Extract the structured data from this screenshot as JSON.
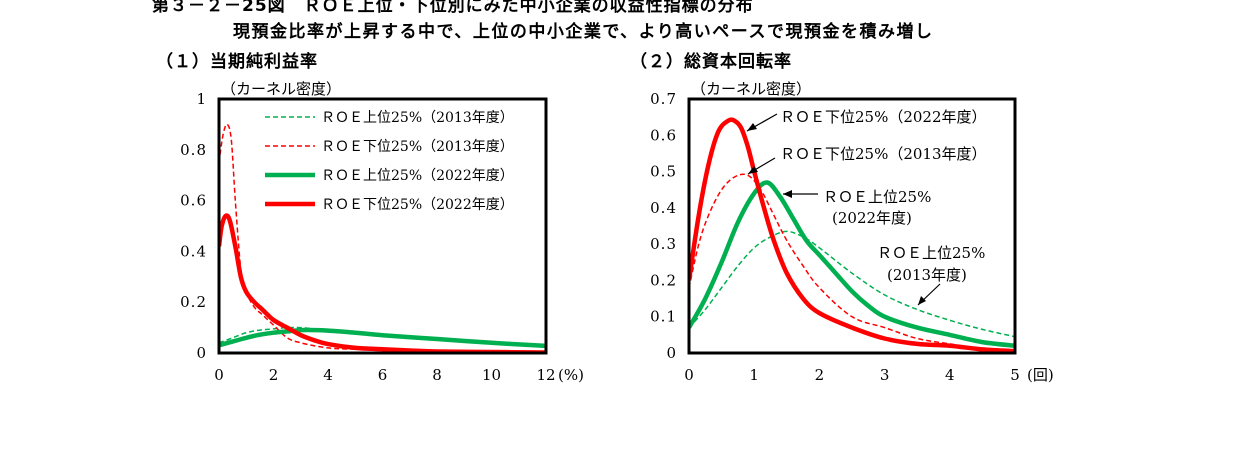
{
  "figure": {
    "title": "第３－２－25図　ＲＯＥ上位・下位別にみた中小企業の収益性指標の分布",
    "subtitle": "現預金比率が上昇する中で、上位の中小企業で、より高いペースで現預金を積み増し"
  },
  "colors": {
    "green": "#00b050",
    "red": "#ff0000",
    "axis": "#000000"
  },
  "chart_data": [
    {
      "type": "line",
      "title": "（１）当期純利益率",
      "ylabel": "（カーネル密度）",
      "x_unit": "(%)",
      "xlim": [
        0,
        12
      ],
      "ylim": [
        0,
        1
      ],
      "xticks": [
        "0",
        "2",
        "4",
        "6",
        "8",
        "10",
        "12"
      ],
      "yticks": [
        "0",
        "0.2",
        "0.4",
        "0.6",
        "0.8",
        "1"
      ],
      "legend_position": "top-right",
      "series": [
        {
          "name": "ＲＯＥ上位25%（2013年度）",
          "color": "green",
          "style": "dashed",
          "x": [
            0,
            0.5,
            1,
            1.5,
            2,
            2.5,
            3,
            3.5,
            4,
            5,
            6,
            8,
            10,
            12
          ],
          "y": [
            0.04,
            0.06,
            0.08,
            0.09,
            0.095,
            0.1,
            0.1,
            0.095,
            0.09,
            0.08,
            0.07,
            0.05,
            0.04,
            0.03
          ]
        },
        {
          "name": "ＲＯＥ下位25%（2013年度）",
          "color": "red",
          "style": "dashed",
          "x": [
            0,
            0.15,
            0.3,
            0.45,
            0.6,
            0.8,
            1,
            1.3,
            1.6,
            2,
            2.5,
            3,
            4,
            5,
            6,
            8,
            10,
            12
          ],
          "y": [
            0.75,
            0.86,
            0.9,
            0.84,
            0.6,
            0.33,
            0.24,
            0.18,
            0.15,
            0.11,
            0.06,
            0.04,
            0.02,
            0.015,
            0.01,
            0.005,
            0.003,
            0.002
          ]
        },
        {
          "name": "ＲＯＥ上位25%（2022年度）",
          "color": "green",
          "style": "solid",
          "x": [
            0,
            0.5,
            1,
            1.5,
            2,
            2.5,
            3,
            3.5,
            4,
            5,
            6,
            8,
            10,
            12
          ],
          "y": [
            0.03,
            0.045,
            0.06,
            0.072,
            0.08,
            0.085,
            0.09,
            0.09,
            0.088,
            0.08,
            0.07,
            0.055,
            0.04,
            0.028
          ]
        },
        {
          "name": "ＲＯＥ下位25%（2022年度）",
          "color": "red",
          "style": "solid",
          "x": [
            0,
            0.1,
            0.25,
            0.4,
            0.6,
            0.8,
            1,
            1.3,
            1.6,
            2,
            2.5,
            3,
            3.5,
            4,
            5,
            6,
            7,
            8,
            10,
            12
          ],
          "y": [
            0.42,
            0.5,
            0.54,
            0.52,
            0.42,
            0.3,
            0.24,
            0.2,
            0.17,
            0.13,
            0.1,
            0.07,
            0.05,
            0.035,
            0.02,
            0.015,
            0.01,
            0.006,
            0.004,
            0.002
          ]
        }
      ]
    },
    {
      "type": "line",
      "title": "（２）総資本回転率",
      "ylabel": "（カーネル密度）",
      "x_unit": "(回)",
      "xlim": [
        0,
        5
      ],
      "ylim": [
        0,
        0.7
      ],
      "xticks": [
        "0",
        "1",
        "2",
        "3",
        "4",
        "5"
      ],
      "yticks": [
        "0",
        "0.1",
        "0.2",
        "0.3",
        "0.4",
        "0.5",
        "0.6",
        "0.7"
      ],
      "annotations": [
        {
          "text": "ＲＯＥ下位25%（2022年度）",
          "series": 3
        },
        {
          "text": "ＲＯＥ下位25%（2013年度）",
          "series": 1
        },
        {
          "text": "ＲＯＥ上位25%",
          "text2": "(2022年度)",
          "series": 2
        },
        {
          "text": "ＲＯＥ上位25%",
          "text2": "(2013年度)",
          "series": 0
        }
      ],
      "series": [
        {
          "name": "ＲＯＥ上位25%（2013年度）",
          "color": "green",
          "style": "dashed",
          "x": [
            0,
            0.25,
            0.5,
            0.75,
            1,
            1.25,
            1.5,
            1.75,
            2,
            2.5,
            3,
            3.5,
            4,
            4.5,
            5
          ],
          "y": [
            0.07,
            0.12,
            0.18,
            0.24,
            0.29,
            0.32,
            0.335,
            0.32,
            0.29,
            0.22,
            0.16,
            0.12,
            0.09,
            0.065,
            0.045
          ]
        },
        {
          "name": "ＲＯＥ下位25%（2013年度）",
          "color": "red",
          "style": "dashed",
          "x": [
            0,
            0.15,
            0.3,
            0.5,
            0.7,
            0.9,
            1.1,
            1.3,
            1.5,
            1.75,
            2,
            2.5,
            3,
            3.5,
            4,
            4.5,
            5
          ],
          "y": [
            0.18,
            0.3,
            0.38,
            0.45,
            0.485,
            0.49,
            0.45,
            0.38,
            0.31,
            0.24,
            0.18,
            0.1,
            0.07,
            0.04,
            0.025,
            0.012,
            0.005
          ]
        },
        {
          "name": "ＲＯＥ上位25%（2022年度）",
          "color": "green",
          "style": "solid",
          "x": [
            0,
            0.25,
            0.5,
            0.75,
            1,
            1.2,
            1.4,
            1.6,
            1.8,
            2,
            2.25,
            2.5,
            2.75,
            3,
            3.5,
            4,
            4.5,
            5
          ],
          "y": [
            0.07,
            0.15,
            0.25,
            0.36,
            0.44,
            0.47,
            0.43,
            0.37,
            0.31,
            0.27,
            0.22,
            0.17,
            0.13,
            0.1,
            0.07,
            0.05,
            0.03,
            0.02
          ]
        },
        {
          "name": "ＲＯＥ下位25%（2022年度）",
          "color": "red",
          "style": "solid",
          "x": [
            0,
            0.15,
            0.3,
            0.45,
            0.6,
            0.7,
            0.8,
            0.9,
            1,
            1.15,
            1.3,
            1.5,
            1.75,
            2,
            2.5,
            3,
            3.5,
            4,
            4.5,
            5
          ],
          "y": [
            0.2,
            0.38,
            0.52,
            0.61,
            0.64,
            0.64,
            0.62,
            0.57,
            0.5,
            0.4,
            0.31,
            0.22,
            0.15,
            0.11,
            0.07,
            0.04,
            0.025,
            0.02,
            0.01,
            0.005
          ]
        }
      ]
    }
  ]
}
